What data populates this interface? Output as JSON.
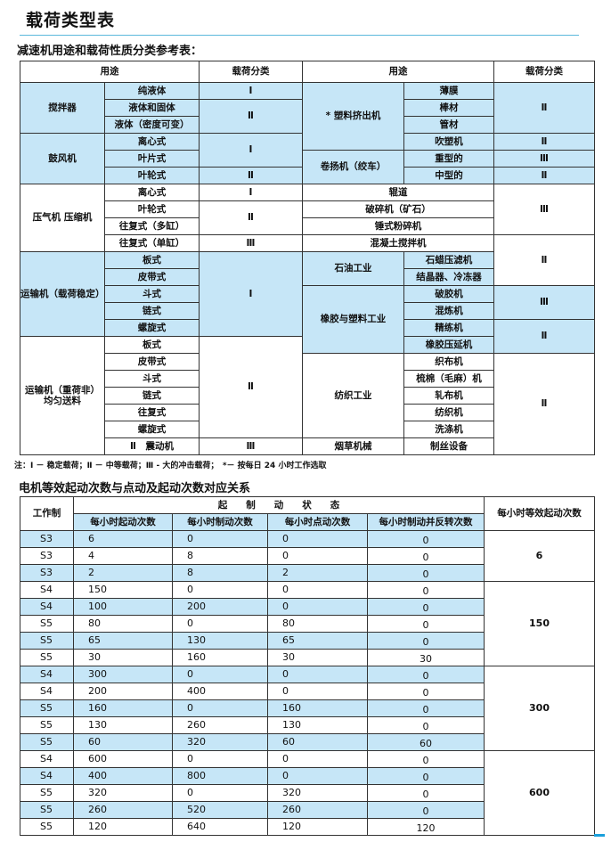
{
  "title": "载荷类型表",
  "subtitle": "减速机用途和载荷性质分类参考表：",
  "accent_color": "#c6e6f7",
  "table1": {
    "headers": [
      "用途",
      "载荷分类",
      "用途",
      "载荷分类"
    ],
    "rows": [
      [
        {
          "t": "搅拌器",
          "rs": 3,
          "hl": true
        },
        {
          "t": "纯液体",
          "hl": true
        },
        {
          "t": "Ⅰ",
          "hl": true
        },
        {
          "t": "* 塑料挤出机",
          "rs": 4,
          "hl": true
        },
        {
          "t": "薄膜",
          "hl": true
        },
        {
          "t": "Ⅱ",
          "rs": 3,
          "hl": true
        }
      ],
      [
        {
          "t": "液体和固体",
          "hl": true
        },
        {
          "t": "Ⅱ",
          "rs": 2,
          "hl": true
        },
        {
          "t": "棒材",
          "hl": true
        }
      ],
      [
        {
          "t": "液体（密度可变）",
          "hl": true
        },
        {
          "t": "管材",
          "hl": true
        }
      ],
      [
        {
          "t": "鼓风机",
          "rs": 3,
          "hl": true
        },
        {
          "t": "离心式",
          "hl": true
        },
        {
          "t": "Ⅰ",
          "rs": 2,
          "hl": true
        },
        {
          "t": "吹塑机",
          "hl": true
        },
        {
          "t": "Ⅱ",
          "hl": true
        }
      ],
      [
        {
          "t": "叶片式",
          "hl": true
        },
        {
          "t": "卷扬机（绞车）",
          "rs": 2,
          "hl": true
        },
        {
          "t": "重型的",
          "hl": true
        },
        {
          "t": "Ⅲ",
          "hl": true
        }
      ],
      [
        {
          "t": "叶轮式",
          "hl": true
        },
        {
          "t": "Ⅱ",
          "hl": true
        },
        {
          "t": "中型的",
          "hl": true
        },
        {
          "t": "Ⅱ",
          "hl": true
        }
      ],
      [
        {
          "t": "压气机 压缩机",
          "rs": 4
        },
        {
          "t": "离心式"
        },
        {
          "t": "Ⅰ"
        },
        {
          "t": "辊道",
          "cs": 2
        },
        {
          "t": "Ⅲ",
          "rs": 3
        }
      ],
      [
        {
          "t": "叶轮式"
        },
        {
          "t": "Ⅱ",
          "rs": 2
        },
        {
          "t": "破碎机（矿石）",
          "cs": 2
        }
      ],
      [
        {
          "t": "往复式（多缸）"
        },
        {
          "t": "锤式粉碎机",
          "cs": 2
        }
      ],
      [
        {
          "t": "往复式（单缸）"
        },
        {
          "t": "Ⅲ"
        },
        {
          "t": "混凝土搅拌机",
          "cs": 2
        },
        {
          "t": "Ⅱ",
          "rs": 3
        }
      ],
      [
        {
          "t": "运输机（载荷稳定）",
          "rs": 5,
          "hl": true
        },
        {
          "t": "板式",
          "hl": true
        },
        {
          "t": "Ⅰ",
          "rs": 5,
          "hl": true
        },
        {
          "t": "石油工业",
          "rs": 2,
          "hl": true
        },
        {
          "t": "石蜡压滤机",
          "hl": true
        }
      ],
      [
        {
          "t": "皮带式",
          "hl": true
        },
        {
          "t": "结晶器、冷冻器",
          "hl": true
        }
      ],
      [
        {
          "t": "斗式",
          "hl": true
        },
        {
          "t": "橡胶与塑料工业",
          "rs": 4,
          "hl": true
        },
        {
          "t": "破胶机",
          "hl": true
        },
        {
          "t": "Ⅲ",
          "rs": 2,
          "hl": true
        }
      ],
      [
        {
          "t": "链式",
          "hl": true
        },
        {
          "t": "混炼机",
          "hl": true
        }
      ],
      [
        {
          "t": "螺旋式",
          "hl": true
        },
        {
          "t": "精练机",
          "hl": true
        },
        {
          "t": "Ⅱ",
          "rs": 2,
          "hl": true
        }
      ],
      [
        {
          "t": "运输机（重荷非）均匀送料",
          "rs": 7
        },
        {
          "t": "板式"
        },
        {
          "t": "Ⅱ",
          "rs": 6
        },
        {
          "t": "橡胶压延机",
          "hl": true
        }
      ],
      [
        {
          "t": "皮带式"
        },
        {
          "t": "纺织工业",
          "rs": 5
        },
        {
          "t": "织布机"
        },
        {
          "t": "Ⅱ",
          "rs": 6
        }
      ],
      [
        {
          "t": "斗式"
        },
        {
          "t": "梳棉（毛麻）机"
        }
      ],
      [
        {
          "t": "链式"
        },
        {
          "t": "轧布机"
        }
      ],
      [
        {
          "t": "往复式"
        },
        {
          "t": "纺织机"
        }
      ],
      [
        {
          "t": "螺旋式"
        },
        {
          "t": "洗涤机"
        }
      ],
      [
        {
          "t": "Ⅱ　震动机"
        },
        {
          "t": "Ⅲ"
        },
        {
          "t": "烟草机械"
        },
        {
          "t": "制丝设备"
        }
      ]
    ]
  },
  "note": "注：Ⅰ － 稳定载荷；Ⅱ － 中等载荷；Ⅲ - 大的冲击载荷；　*－ 按每日 24 小时工作选取",
  "subtitle2": "电机等效起动次数与点动及起动次数对应关系",
  "table2": {
    "h_work": "工作制",
    "h_state": "起　　制　　动　　状　　态",
    "h_equiv": "每小时等效起动次数",
    "sub_headers": [
      "每小时起动次数",
      "每小时制动次数",
      "每小时点动次数",
      "每小时制动并反转次数"
    ],
    "groups": [
      {
        "equiv": "6",
        "rows": [
          [
            "S3",
            "6",
            "0",
            "0",
            "0"
          ],
          [
            "S3",
            "4",
            "8",
            "0",
            "0"
          ],
          [
            "S3",
            "2",
            "8",
            "2",
            "0"
          ]
        ]
      },
      {
        "equiv": "150",
        "rows": [
          [
            "S4",
            "150",
            "0",
            "0",
            "0"
          ],
          [
            "S4",
            "100",
            "200",
            "0",
            "0"
          ],
          [
            "S5",
            "80",
            "0",
            "80",
            "0"
          ],
          [
            "S5",
            "65",
            "130",
            "65",
            "0"
          ],
          [
            "S5",
            "30",
            "160",
            "30",
            "30"
          ]
        ]
      },
      {
        "equiv": "300",
        "rows": [
          [
            "S4",
            "300",
            "0",
            "0",
            "0"
          ],
          [
            "S4",
            "200",
            "400",
            "0",
            "0"
          ],
          [
            "S5",
            "160",
            "0",
            "160",
            "0"
          ],
          [
            "S5",
            "130",
            "260",
            "130",
            "0"
          ],
          [
            "S5",
            "60",
            "320",
            "60",
            "60"
          ]
        ]
      },
      {
        "equiv": "600",
        "rows": [
          [
            "S4",
            "600",
            "0",
            "0",
            "0"
          ],
          [
            "S4",
            "400",
            "800",
            "0",
            "0"
          ],
          [
            "S5",
            "320",
            "0",
            "320",
            "0"
          ],
          [
            "S5",
            "260",
            "520",
            "260",
            "0"
          ],
          [
            "S5",
            "120",
            "640",
            "120",
            "120"
          ]
        ]
      }
    ]
  }
}
